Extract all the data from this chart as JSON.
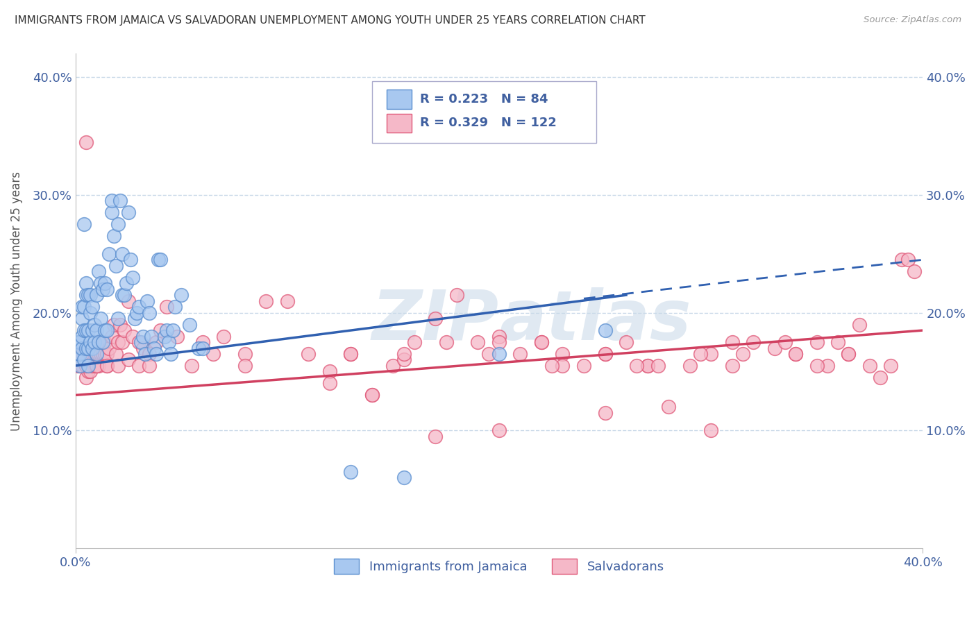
{
  "title": "IMMIGRANTS FROM JAMAICA VS SALVADORAN UNEMPLOYMENT AMONG YOUTH UNDER 25 YEARS CORRELATION CHART",
  "source": "Source: ZipAtlas.com",
  "ylabel": "Unemployment Among Youth under 25 years",
  "legend1_label": "R = 0.223   N = 84",
  "legend2_label": "R = 0.329   N = 122",
  "legend_bottom1": "Immigrants from Jamaica",
  "legend_bottom2": "Salvadorans",
  "blue_fill": "#A8C8F0",
  "blue_edge": "#5B8FD0",
  "pink_fill": "#F5B8C8",
  "pink_edge": "#E05878",
  "blue_line_color": "#3060B0",
  "pink_line_color": "#D04060",
  "xlim": [
    0.0,
    0.4
  ],
  "ylim": [
    0.0,
    0.42
  ],
  "blue_trend_solid": [
    0.0,
    0.26,
    0.155,
    0.215
  ],
  "blue_trend_dash": [
    0.24,
    0.4,
    0.212,
    0.245
  ],
  "pink_trend": [
    0.0,
    0.4,
    0.13,
    0.185
  ],
  "background_color": "#ffffff",
  "grid_color": "#c8d8e8",
  "text_color": "#4060A0",
  "title_color": "#333333",
  "source_color": "#999999",
  "ytick_vals": [
    0.0,
    0.1,
    0.2,
    0.3,
    0.4
  ],
  "ytick_labels": [
    "",
    "10.0%",
    "20.0%",
    "30.0%",
    "40.0%"
  ],
  "blue_x": [
    0.001,
    0.001,
    0.002,
    0.002,
    0.002,
    0.003,
    0.003,
    0.003,
    0.003,
    0.004,
    0.004,
    0.004,
    0.004,
    0.005,
    0.005,
    0.005,
    0.005,
    0.006,
    0.006,
    0.006,
    0.006,
    0.007,
    0.007,
    0.007,
    0.008,
    0.008,
    0.008,
    0.009,
    0.009,
    0.01,
    0.01,
    0.01,
    0.011,
    0.011,
    0.012,
    0.012,
    0.013,
    0.013,
    0.014,
    0.014,
    0.015,
    0.015,
    0.016,
    0.017,
    0.017,
    0.018,
    0.019,
    0.02,
    0.02,
    0.021,
    0.022,
    0.022,
    0.023,
    0.024,
    0.025,
    0.026,
    0.027,
    0.028,
    0.029,
    0.03,
    0.031,
    0.032,
    0.033,
    0.034,
    0.035,
    0.036,
    0.037,
    0.038,
    0.039,
    0.04,
    0.042,
    0.043,
    0.044,
    0.045,
    0.046,
    0.047,
    0.05,
    0.054,
    0.058,
    0.06,
    0.13,
    0.155,
    0.2,
    0.25
  ],
  "blue_y": [
    0.16,
    0.175,
    0.155,
    0.165,
    0.175,
    0.17,
    0.18,
    0.195,
    0.205,
    0.16,
    0.185,
    0.205,
    0.275,
    0.17,
    0.185,
    0.215,
    0.225,
    0.155,
    0.17,
    0.185,
    0.215,
    0.175,
    0.2,
    0.215,
    0.17,
    0.185,
    0.205,
    0.175,
    0.19,
    0.165,
    0.185,
    0.215,
    0.175,
    0.235,
    0.195,
    0.225,
    0.175,
    0.22,
    0.185,
    0.225,
    0.185,
    0.22,
    0.25,
    0.285,
    0.295,
    0.265,
    0.24,
    0.195,
    0.275,
    0.295,
    0.215,
    0.25,
    0.215,
    0.225,
    0.285,
    0.245,
    0.23,
    0.195,
    0.2,
    0.205,
    0.175,
    0.18,
    0.165,
    0.21,
    0.2,
    0.18,
    0.17,
    0.165,
    0.245,
    0.245,
    0.18,
    0.185,
    0.175,
    0.165,
    0.185,
    0.205,
    0.215,
    0.19,
    0.17,
    0.17,
    0.065,
    0.06,
    0.165,
    0.185
  ],
  "pink_x": [
    0.001,
    0.002,
    0.002,
    0.003,
    0.003,
    0.004,
    0.004,
    0.005,
    0.005,
    0.005,
    0.006,
    0.006,
    0.007,
    0.007,
    0.008,
    0.008,
    0.009,
    0.009,
    0.01,
    0.01,
    0.011,
    0.011,
    0.012,
    0.012,
    0.013,
    0.014,
    0.014,
    0.015,
    0.015,
    0.016,
    0.017,
    0.018,
    0.019,
    0.02,
    0.021,
    0.022,
    0.023,
    0.025,
    0.027,
    0.03,
    0.032,
    0.035,
    0.038,
    0.04,
    0.043,
    0.048,
    0.055,
    0.06,
    0.065,
    0.07,
    0.08,
    0.09,
    0.1,
    0.11,
    0.12,
    0.13,
    0.14,
    0.15,
    0.16,
    0.17,
    0.18,
    0.19,
    0.2,
    0.21,
    0.22,
    0.23,
    0.24,
    0.25,
    0.26,
    0.27,
    0.28,
    0.29,
    0.3,
    0.31,
    0.32,
    0.33,
    0.34,
    0.35,
    0.36,
    0.365,
    0.37,
    0.375,
    0.38,
    0.385,
    0.39,
    0.393,
    0.396,
    0.005,
    0.01,
    0.015,
    0.02,
    0.025,
    0.03,
    0.035,
    0.08,
    0.14,
    0.2,
    0.25,
    0.3,
    0.34,
    0.12,
    0.17,
    0.22,
    0.27,
    0.155,
    0.195,
    0.23,
    0.265,
    0.31,
    0.355,
    0.13,
    0.155,
    0.175,
    0.2,
    0.225,
    0.25,
    0.275,
    0.295,
    0.315,
    0.335,
    0.35,
    0.365
  ],
  "pink_y": [
    0.155,
    0.155,
    0.165,
    0.155,
    0.165,
    0.16,
    0.165,
    0.145,
    0.155,
    0.345,
    0.15,
    0.16,
    0.15,
    0.16,
    0.155,
    0.165,
    0.155,
    0.165,
    0.155,
    0.165,
    0.155,
    0.165,
    0.165,
    0.175,
    0.165,
    0.165,
    0.175,
    0.155,
    0.165,
    0.17,
    0.18,
    0.19,
    0.165,
    0.175,
    0.19,
    0.175,
    0.185,
    0.21,
    0.18,
    0.175,
    0.17,
    0.165,
    0.175,
    0.185,
    0.205,
    0.18,
    0.155,
    0.175,
    0.165,
    0.18,
    0.165,
    0.21,
    0.21,
    0.165,
    0.15,
    0.165,
    0.13,
    0.155,
    0.175,
    0.195,
    0.215,
    0.175,
    0.18,
    0.165,
    0.175,
    0.165,
    0.155,
    0.165,
    0.175,
    0.155,
    0.12,
    0.155,
    0.165,
    0.175,
    0.175,
    0.17,
    0.165,
    0.175,
    0.175,
    0.165,
    0.19,
    0.155,
    0.145,
    0.155,
    0.245,
    0.245,
    0.235,
    0.155,
    0.155,
    0.155,
    0.155,
    0.16,
    0.155,
    0.155,
    0.155,
    0.13,
    0.1,
    0.115,
    0.1,
    0.165,
    0.14,
    0.095,
    0.175,
    0.155,
    0.16,
    0.165,
    0.155,
    0.155,
    0.155,
    0.155,
    0.165,
    0.165,
    0.175,
    0.175,
    0.155,
    0.165,
    0.155,
    0.165,
    0.165,
    0.175,
    0.155,
    0.165
  ]
}
